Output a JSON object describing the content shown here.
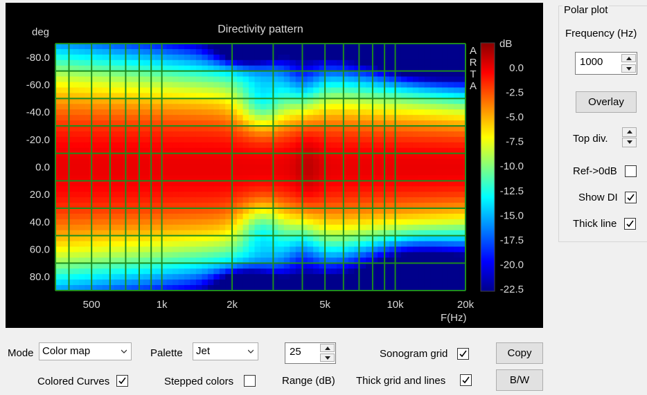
{
  "plot": {
    "title": "Directivity pattern",
    "y_unit": "deg",
    "x_unit": "F(Hz)",
    "colorbar_unit": "dB",
    "watermark": "ARTA"
  },
  "chart_data": {
    "type": "heatmap",
    "title": "Directivity pattern",
    "x_axis": {
      "label": "F(Hz)",
      "scale": "log",
      "range": [
        350,
        20000
      ],
      "tick_labels": [
        "500",
        "1k",
        "2k",
        "5k",
        "10k",
        "20k"
      ],
      "tick_values": [
        500,
        1000,
        2000,
        5000,
        10000,
        20000
      ]
    },
    "y_axis": {
      "label": "deg",
      "range": [
        -90,
        90
      ],
      "tick_labels": [
        "-80.0",
        "-60.0",
        "-40.0",
        "-20.0",
        "0.0",
        "20.0",
        "40.0",
        "60.0",
        "80.0"
      ],
      "tick_values": [
        -80,
        -60,
        -40,
        -20,
        0,
        20,
        40,
        60,
        80
      ]
    },
    "colorbar": {
      "label": "dB",
      "range": [
        -22.5,
        2.5
      ],
      "palette": "Jet",
      "tick_labels": [
        "0.0",
        "-2.5",
        "-5.0",
        "-7.5",
        "-10.0",
        "-12.5",
        "-15.0",
        "-17.5",
        "-20.0",
        "-22.5"
      ]
    },
    "grid": true,
    "notes": "Color map of SPL vs angle and frequency; 0 dB (dark red) along the 0 deg axis, nulls (blue) near +-90 deg at ~2-2.5 kHz and near -80 deg above 10 kHz."
  },
  "controls": {
    "mode_label": "Mode",
    "mode_value": "Color map",
    "palette_label": "Palette",
    "palette_value": "Jet",
    "range_value": "25",
    "range_label": "Range (dB)",
    "sonogram_grid_label": "Sonogram grid",
    "sonogram_grid_checked": true,
    "thick_grid_label": "Thick grid and  lines",
    "thick_grid_checked": true,
    "colored_curves_label": "Colored Curves",
    "colored_curves_checked": true,
    "stepped_colors_label": "Stepped colors",
    "stepped_colors_checked": false,
    "copy_label": "Copy",
    "bw_label": "B/W"
  },
  "polar": {
    "group_title": "Polar plot",
    "frequency_label": "Frequency (Hz)",
    "frequency_value": "1000",
    "overlay_label": "Overlay",
    "top_div_label": "Top div.",
    "ref_label": "Ref->0dB",
    "ref_checked": false,
    "show_di_label": "Show DI",
    "show_di_checked": true,
    "thick_line_label": "Thick line",
    "thick_line_checked": true
  },
  "colors": {
    "grid": "#1e8c1e",
    "plot_bg": "#000000",
    "axis_text": "#d8d8d8"
  }
}
